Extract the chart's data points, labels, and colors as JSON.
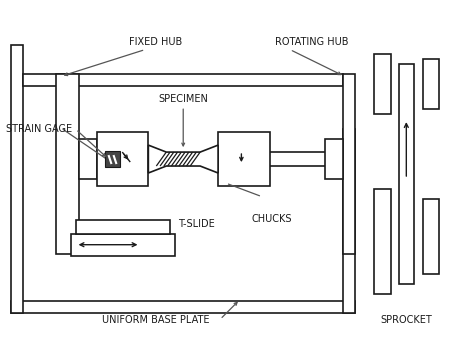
{
  "line_color": "#1a1a1a",
  "labels": {
    "strain_gage": "STRAIN GAGE",
    "fixed_hub": "FIXED HUB",
    "specimen": "SPECIMEN",
    "rotating_hub": "ROTATING HUB",
    "t_slide": "T-SLIDE",
    "chucks": "CHUCKS",
    "base_plate": "UNIFORM BASE PLATE",
    "sprocket": "SPROCKET"
  },
  "figsize": [
    4.74,
    3.44
  ],
  "dpi": 100
}
